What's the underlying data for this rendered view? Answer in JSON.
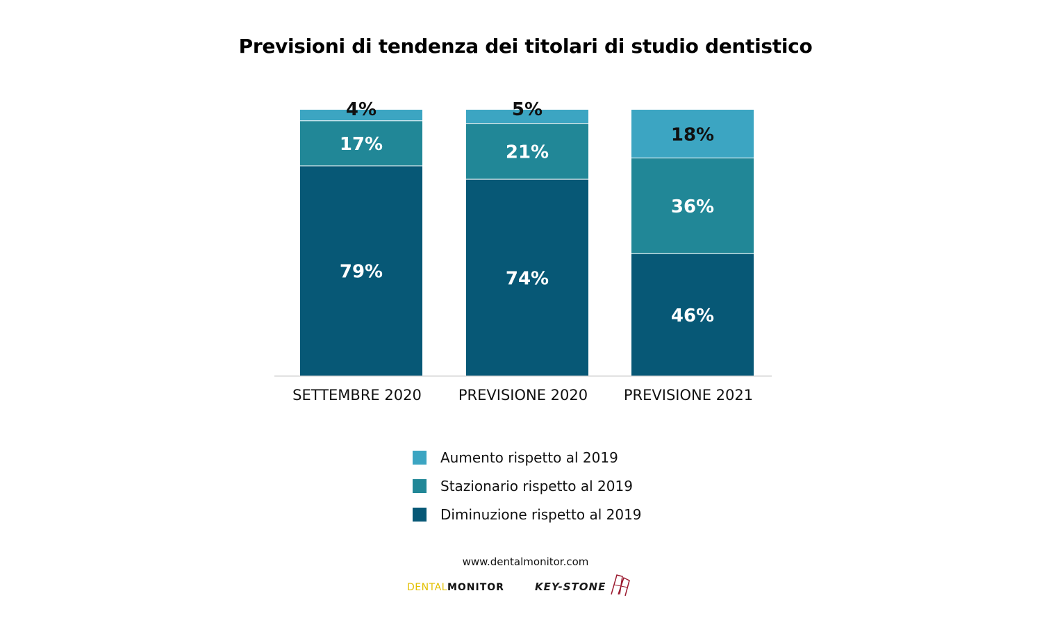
{
  "chart_data": {
    "type": "bar",
    "stacked": true,
    "title": "Previsioni di tendenza dei titolari di studio dentistico",
    "categories": [
      "SETTEMBRE 2020",
      "PREVISIONE 2020",
      "PREVISIONE 2021"
    ],
    "series": [
      {
        "name": "Diminuzione rispetto al 2019",
        "color": "#075876",
        "label_color": "#ffffff",
        "values": [
          79,
          74,
          46
        ]
      },
      {
        "name": "Stazionario rispetto al 2019",
        "color": "#218797",
        "label_color": "#ffffff",
        "values": [
          17,
          21,
          36
        ]
      },
      {
        "name": "Aumento rispetto al 2019",
        "color": "#3ca5c2",
        "label_color": "#111111",
        "values": [
          4,
          5,
          18
        ]
      }
    ],
    "value_suffix": "%",
    "ylim": [
      0,
      100
    ],
    "xlabel": "",
    "ylabel": "",
    "grid": false,
    "legend_position": "bottom"
  },
  "legend": {
    "items": [
      {
        "label": "Aumento rispetto al 2019",
        "color": "#3ca5c2"
      },
      {
        "label": "Stazionario rispetto al 2019",
        "color": "#218797"
      },
      {
        "label": "Diminuzione rispetto al 2019",
        "color": "#075876"
      }
    ]
  },
  "footer": {
    "source": "www.dentalmonitor.com",
    "logo_dental_light": "DENTAL",
    "logo_dental_dark": "MONITOR",
    "logo_keystone": "KEY-STONE"
  },
  "colors": {
    "axis": "#cccccc"
  }
}
